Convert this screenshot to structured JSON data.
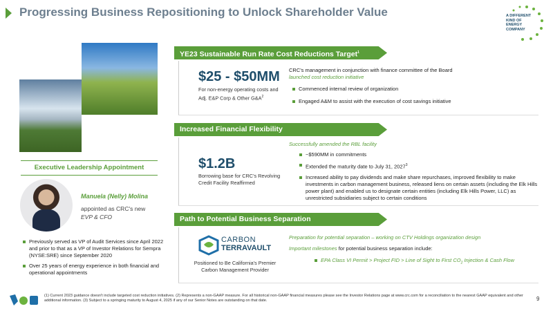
{
  "header": {
    "title": "Progressing Business Repositioning to Unlock Shareholder Value",
    "logo_text": "A DIFFERENT KIND OF ENERGY COMPANY"
  },
  "leadership": {
    "heading": "Executive Leadership Appointment",
    "name": "Manuela (Nelly) Molina",
    "role_intro": "appointed as CRC's new",
    "role": "EVP & CFO",
    "bullets": [
      "Previously served as VP of Audit Services since April 2022 and prior to that as a VP of Investor Relations for Sempra (NYSE:SRE) since September 2020",
      "Over 25 years of energy experience in both financial and operational appointments"
    ]
  },
  "sections": [
    {
      "title": "YE23 Sustainable Run Rate Cost Reductions Target",
      "title_note": "1",
      "figure": "$25 - $50MM",
      "caption": "For non-energy operating costs and Adj. E&P Corp & Other G&A",
      "caption_note": "2",
      "intro": "CRC's management in conjunction with finance committee of the Board",
      "highlight": "launched cost reduction initiative",
      "bullets": [
        "Commenced internal review of organization",
        "Engaged A&M to assist with the execution of cost savings initiative"
      ]
    },
    {
      "title": "Increased Financial Flexibility",
      "figure": "$1.2B",
      "caption": "Borrowing base for CRC's Revolving Credit Facility Reaffirmed",
      "highlight": "Successfully amended the RBL facility",
      "bullets": [
        "~$590MM in commitments",
        "Extended the maturity date to July 31, 2027",
        "Increased ability to pay dividends and make share repurchases, improved flexibility to make investments in carbon management business, released liens on certain assets (including the Elk Hills power plant) and enabled us to designate certain entities (including Elk Hills Power, LLC) as unrestricted subsidiaries subject to certain conditions"
      ],
      "bullet_note": "3"
    },
    {
      "title": "Path to Potential Business Separation",
      "logo_top": "CARBON",
      "logo_bottom": "TERRAVAULT",
      "caption": "Positioned to Be California's Premier Carbon Management Provider",
      "highlight": "Preparation for potential separation – working on CTV Holdings organization design",
      "milestone_lead": "Important milestones",
      "milestone_rest": "for potential business separation include:",
      "bullet_start": "EPA Class VI Permit > Project FID > Line of Sight to First CO",
      "bullet_sub": "2",
      "bullet_end": "Injection & Cash Flow"
    }
  ],
  "footer": {
    "note": "(1) Current 2023 guidance doesn't include targeted cost reduction initiatives. (2) Represents a non-GAAP measure. For all historical non-GAAP financial measures please see the Investor Relations page at www.crc.com for a reconciliation to the nearest GAAP equivalent and other additional information. (3) Subject to a springing maturity to August 4, 2025 if any of our Senior Notes are outstanding on that date.",
    "page": "9"
  }
}
